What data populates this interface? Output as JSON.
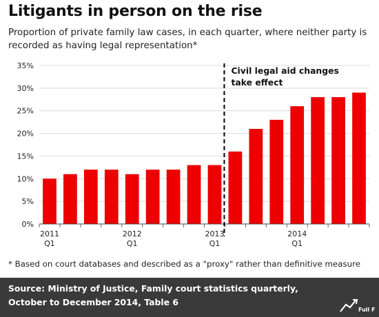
{
  "chart_data": {
    "type": "bar",
    "title": "Litigants in person on the rise",
    "subtitle": "Proportion of private family law cases, in each quarter, where neither party is recorded as having legal representation*",
    "values": [
      10,
      11,
      12,
      12,
      11,
      12,
      12,
      13,
      13,
      16,
      21,
      23,
      26,
      28,
      28,
      29
    ],
    "x_tick_labels": [
      {
        "index": 0,
        "year": "2011",
        "quarter": "Q1"
      },
      {
        "index": 4,
        "year": "2012",
        "quarter": "Q1"
      },
      {
        "index": 8,
        "year": "2013",
        "quarter": "Q1"
      },
      {
        "index": 12,
        "year": "2014",
        "quarter": "Q1"
      }
    ],
    "y_ticks": [
      0,
      5,
      10,
      15,
      20,
      25,
      30,
      35
    ],
    "y_tick_suffix": "%",
    "ylim": [
      0,
      35
    ],
    "grid": true,
    "bar_color": "#ee0000",
    "annotation": {
      "after_index": 8,
      "lines": [
        "Civil legal aid changes",
        "take effect"
      ]
    }
  },
  "note": "* Based on court databases and described as a \"proxy\" rather than definitive measure",
  "footer": {
    "source_label": "Source:",
    "source_text": "Ministry of Justice, Family court statistics quarterly, October to December 2014, Table 6",
    "logo_text": "Full Fact"
  }
}
